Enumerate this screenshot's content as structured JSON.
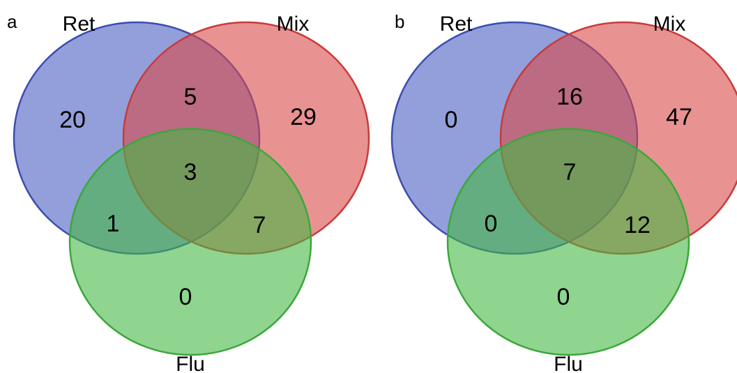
{
  "colors": {
    "ret_fill": "#4a5fc1",
    "ret_stroke": "#3b4db0",
    "mix_fill": "#d94a4a",
    "mix_stroke": "#c73b3b",
    "flu_fill": "#45b845",
    "flu_stroke": "#3aa83a"
  },
  "panels": [
    {
      "letter": "a",
      "sets": {
        "ret": "Ret",
        "mix": "Mix",
        "flu": "Flu"
      },
      "counts": {
        "ret_only": "20",
        "mix_only": "29",
        "flu_only": "0",
        "ret_mix": "5",
        "ret_flu": "1",
        "mix_flu": "7",
        "all": "3"
      }
    },
    {
      "letter": "b",
      "sets": {
        "ret": "Ret",
        "mix": "Mix",
        "flu": "Flu"
      },
      "counts": {
        "ret_only": "0",
        "mix_only": "47",
        "flu_only": "0",
        "ret_mix": "16",
        "ret_flu": "0",
        "mix_flu": "12",
        "all": "7"
      }
    }
  ]
}
